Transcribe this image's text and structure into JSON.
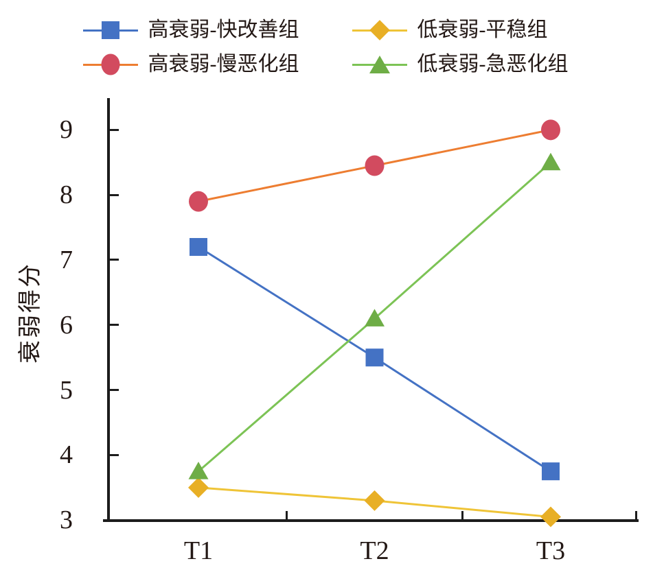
{
  "colors": {
    "axis": "#1c1c1c",
    "text": "#231815",
    "background": "#ffffff"
  },
  "chart_data": {
    "type": "line",
    "title": "",
    "xlabel": "",
    "ylabel": "衰弱得分",
    "categories": [
      "T1",
      "T2",
      "T3"
    ],
    "yticks": [
      9,
      8,
      7,
      6,
      5,
      4,
      3
    ],
    "ylim": [
      3,
      9.5
    ],
    "grid": false,
    "legend_position": "top",
    "legend_rows": [
      [
        "高衰弱-快改善组",
        "低衰弱-平稳组"
      ],
      [
        "高衰弱-慢恶化组",
        "低衰弱-急恶化组"
      ]
    ],
    "series": [
      {
        "name": "高衰弱-快改善组",
        "marker": "square",
        "marker_color": "#4472c4",
        "line_color": "#4472c4",
        "values": [
          7.2,
          5.5,
          3.75
        ]
      },
      {
        "name": "高衰弱-慢恶化组",
        "marker": "circle",
        "marker_color": "#d24b5f",
        "line_color": "#ed7d31",
        "values": [
          7.9,
          8.45,
          9.0
        ]
      },
      {
        "name": "低衰弱-平稳组",
        "marker": "diamond",
        "marker_color": "#e8af25",
        "line_color": "#efc437",
        "values": [
          3.5,
          3.3,
          3.05
        ]
      },
      {
        "name": "低衰弱-急恶化组",
        "marker": "triangle",
        "marker_color": "#6ead46",
        "line_color": "#7cc355",
        "values": [
          3.75,
          6.1,
          8.5
        ]
      }
    ]
  }
}
